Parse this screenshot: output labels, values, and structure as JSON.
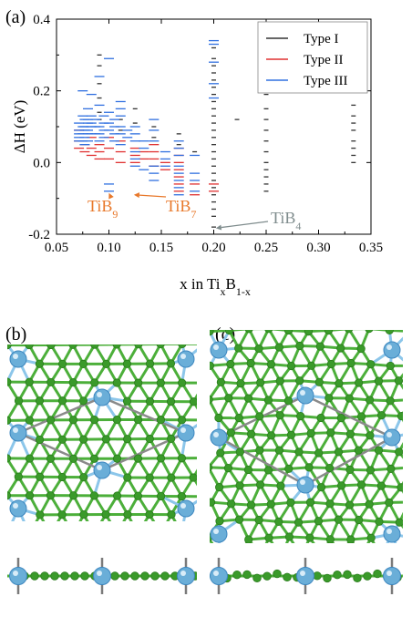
{
  "panels": {
    "a": "(a)",
    "b": "(b)",
    "c": "(c)"
  },
  "chart_data": {
    "type": "scatter",
    "marker": "short horizontal dash",
    "xlabel_parts": {
      "base": "x in Ti",
      "sub1": "x",
      "mid": "B",
      "sub2": "1-x"
    },
    "ylabel": "ΔH (eV)",
    "xlim": [
      0.05,
      0.35
    ],
    "ylim": [
      -0.2,
      0.4
    ],
    "xticks": [
      "0.05",
      "0.10",
      "0.15",
      "0.20",
      "0.25",
      "0.30",
      "0.35"
    ],
    "yticks": [
      "-0.2",
      "0.0",
      "0.2",
      "0.4"
    ],
    "legend_position": "top-right",
    "series": [
      {
        "name": "Type I",
        "color": "#333333",
        "points": [
          [
            0.0909,
            0.3
          ],
          [
            0.0909,
            0.27
          ],
          [
            0.0909,
            0.22
          ],
          [
            0.0909,
            0.18
          ],
          [
            0.0909,
            0.14
          ],
          [
            0.0909,
            0.12
          ],
          [
            0.1111,
            0.12
          ],
          [
            0.1111,
            0.09
          ],
          [
            0.125,
            0.15
          ],
          [
            0.125,
            0.11
          ],
          [
            0.1429,
            0.1
          ],
          [
            0.1429,
            0.07
          ],
          [
            0.1667,
            0.08
          ],
          [
            0.1667,
            0.05
          ],
          [
            0.1818,
            0.03
          ],
          [
            0.2,
            0.32
          ],
          [
            0.2,
            0.29
          ],
          [
            0.2,
            0.27
          ],
          [
            0.2,
            0.25
          ],
          [
            0.2,
            0.23
          ],
          [
            0.2,
            0.21
          ],
          [
            0.2,
            0.19
          ],
          [
            0.2,
            0.17
          ],
          [
            0.2,
            0.15
          ],
          [
            0.2,
            0.13
          ],
          [
            0.2,
            0.11
          ],
          [
            0.2,
            0.09
          ],
          [
            0.2,
            0.07
          ],
          [
            0.2,
            0.05
          ],
          [
            0.2,
            0.03
          ],
          [
            0.2,
            0.01
          ],
          [
            0.2,
            -0.01
          ],
          [
            0.2,
            -0.03
          ],
          [
            0.2,
            -0.05
          ],
          [
            0.2,
            -0.07
          ],
          [
            0.2,
            -0.09
          ],
          [
            0.2,
            -0.11
          ],
          [
            0.2,
            -0.13
          ],
          [
            0.2,
            -0.15
          ],
          [
            0.2,
            -0.18
          ],
          [
            0.2222,
            0.12
          ],
          [
            0.25,
            0.28
          ],
          [
            0.25,
            0.22
          ],
          [
            0.25,
            0.19
          ],
          [
            0.25,
            0.15
          ],
          [
            0.25,
            0.12
          ],
          [
            0.25,
            0.09
          ],
          [
            0.25,
            0.06
          ],
          [
            0.25,
            0.03
          ],
          [
            0.25,
            0.0
          ],
          [
            0.25,
            -0.02
          ],
          [
            0.25,
            -0.04
          ],
          [
            0.25,
            -0.06
          ],
          [
            0.25,
            -0.08
          ],
          [
            0.3333,
            0.16
          ],
          [
            0.3333,
            0.13
          ],
          [
            0.3333,
            0.11
          ],
          [
            0.3333,
            0.09
          ],
          [
            0.3333,
            0.06
          ],
          [
            0.3333,
            0.04
          ],
          [
            0.3333,
            0.02
          ],
          [
            0.3333,
            0.0
          ]
        ]
      },
      {
        "name": "Type II",
        "color": "#e03030",
        "points": [
          [
            0.0714,
            0.09
          ],
          [
            0.0714,
            0.06
          ],
          [
            0.0714,
            0.04
          ],
          [
            0.0769,
            0.05
          ],
          [
            0.0769,
            0.03
          ],
          [
            0.0833,
            0.07
          ],
          [
            0.0833,
            0.04
          ],
          [
            0.0833,
            0.02
          ],
          [
            0.0909,
            0.05
          ],
          [
            0.0909,
            0.03
          ],
          [
            0.0909,
            0.01
          ],
          [
            0.1,
            0.07
          ],
          [
            0.1,
            0.04
          ],
          [
            0.1,
            0.01
          ],
          [
            0.1111,
            0.06
          ],
          [
            0.1111,
            0.03
          ],
          [
            0.1111,
            0.0
          ],
          [
            0.125,
            0.04
          ],
          [
            0.125,
            0.02
          ],
          [
            0.125,
            0.0
          ],
          [
            0.1333,
            0.03
          ],
          [
            0.1333,
            0.01
          ],
          [
            0.1429,
            0.05
          ],
          [
            0.1429,
            0.03
          ],
          [
            0.1429,
            0.01
          ],
          [
            0.1429,
            -0.01
          ],
          [
            0.1538,
            0.0
          ],
          [
            0.1538,
            -0.02
          ],
          [
            0.1667,
            0.04
          ],
          [
            0.1667,
            0.02
          ],
          [
            0.1667,
            0.0
          ],
          [
            0.1667,
            -0.02
          ],
          [
            0.1667,
            -0.04
          ],
          [
            0.1667,
            -0.06
          ],
          [
            0.1667,
            -0.08
          ],
          [
            0.1818,
            -0.06
          ],
          [
            0.1818,
            -0.09
          ],
          [
            0.2,
            -0.06
          ],
          [
            0.2,
            -0.08
          ]
        ]
      },
      {
        "name": "Type III",
        "color": "#3070e0",
        "points": [
          [
            0.0714,
            0.11
          ],
          [
            0.0714,
            0.09
          ],
          [
            0.0714,
            0.08
          ],
          [
            0.0714,
            0.07
          ],
          [
            0.0714,
            0.06
          ],
          [
            0.075,
            0.2
          ],
          [
            0.075,
            0.13
          ],
          [
            0.075,
            0.1
          ],
          [
            0.075,
            0.08
          ],
          [
            0.075,
            0.06
          ],
          [
            0.0769,
            0.12
          ],
          [
            0.0769,
            0.1
          ],
          [
            0.0769,
            0.09
          ],
          [
            0.0769,
            0.07
          ],
          [
            0.0769,
            0.05
          ],
          [
            0.08,
            0.15
          ],
          [
            0.08,
            0.12
          ],
          [
            0.08,
            0.11
          ],
          [
            0.08,
            0.09
          ],
          [
            0.08,
            0.08
          ],
          [
            0.08,
            0.06
          ],
          [
            0.0833,
            0.19
          ],
          [
            0.0833,
            0.13
          ],
          [
            0.0833,
            0.11
          ],
          [
            0.0833,
            0.1
          ],
          [
            0.0833,
            0.08
          ],
          [
            0.087,
            0.12
          ],
          [
            0.087,
            0.1
          ],
          [
            0.087,
            0.08
          ],
          [
            0.0909,
            0.24
          ],
          [
            0.0909,
            0.16
          ],
          [
            0.0909,
            0.1
          ],
          [
            0.0909,
            0.08
          ],
          [
            0.0909,
            0.06
          ],
          [
            0.0952,
            0.13
          ],
          [
            0.0952,
            0.11
          ],
          [
            0.0952,
            0.09
          ],
          [
            0.0952,
            0.07
          ],
          [
            0.1,
            0.29
          ],
          [
            0.1,
            0.14
          ],
          [
            0.1,
            0.11
          ],
          [
            0.1,
            0.09
          ],
          [
            0.1,
            -0.06
          ],
          [
            0.1,
            -0.08
          ],
          [
            0.1053,
            0.12
          ],
          [
            0.1053,
            0.1
          ],
          [
            0.1053,
            0.08
          ],
          [
            0.1053,
            0.06
          ],
          [
            0.1111,
            0.17
          ],
          [
            0.1111,
            0.15
          ],
          [
            0.1111,
            0.13
          ],
          [
            0.1111,
            0.1
          ],
          [
            0.1111,
            0.08
          ],
          [
            0.1111,
            0.05
          ],
          [
            0.1176,
            0.09
          ],
          [
            0.1176,
            0.07
          ],
          [
            0.125,
            0.1
          ],
          [
            0.125,
            0.08
          ],
          [
            0.125,
            0.06
          ],
          [
            0.125,
            0.03
          ],
          [
            0.125,
            0.01
          ],
          [
            0.125,
            -0.01
          ],
          [
            0.1333,
            0.06
          ],
          [
            0.1333,
            0.04
          ],
          [
            0.1333,
            -0.02
          ],
          [
            0.1429,
            0.12
          ],
          [
            0.1429,
            0.09
          ],
          [
            0.1429,
            0.06
          ],
          [
            0.1429,
            -0.01
          ],
          [
            0.1429,
            -0.03
          ],
          [
            0.1429,
            -0.05
          ],
          [
            0.1538,
            0.03
          ],
          [
            0.1538,
            0.01
          ],
          [
            0.1538,
            -0.01
          ],
          [
            0.1667,
            0.06
          ],
          [
            0.1667,
            0.04
          ],
          [
            0.1667,
            0.02
          ],
          [
            0.1667,
            -0.01
          ],
          [
            0.1667,
            -0.03
          ],
          [
            0.1667,
            -0.05
          ],
          [
            0.1667,
            -0.07
          ],
          [
            0.1667,
            -0.09
          ],
          [
            0.1818,
            0.02
          ],
          [
            0.1818,
            -0.03
          ],
          [
            0.1818,
            -0.05
          ],
          [
            0.1818,
            -0.08
          ],
          [
            0.2,
            0.34
          ],
          [
            0.2,
            0.33
          ],
          [
            0.2,
            0.28
          ],
          [
            0.2,
            0.22
          ],
          [
            0.2,
            0.18
          ]
        ]
      }
    ],
    "annotations": [
      {
        "id": "tib9",
        "base": "TiB",
        "sub": "9",
        "color": "#e8782a",
        "target": [
          0.1,
          -0.085
        ]
      },
      {
        "id": "tib7",
        "base": "TiB",
        "sub": "7",
        "color": "#e8782a",
        "target": [
          0.1238,
          -0.09
        ]
      },
      {
        "id": "tib4",
        "base": "TiB",
        "sub": "4",
        "color": "#7f8c8d",
        "target": [
          0.202,
          -0.183
        ]
      }
    ]
  }
}
